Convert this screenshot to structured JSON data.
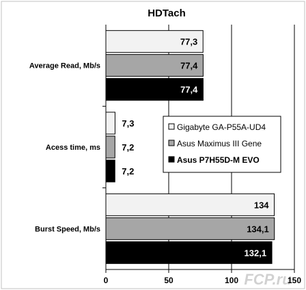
{
  "chart_data": {
    "type": "bar",
    "orientation": "horizontal",
    "title": "HDTach",
    "categories": [
      "Average Read, Mb/s",
      "Acess time, ms",
      "Burst Speed, Mb/s"
    ],
    "series": [
      {
        "name": "Gigabyte GA-P55A-UD4",
        "color": "#f2f2f2",
        "label_color": "#000000",
        "labels": [
          "77,3",
          "7,3",
          "134"
        ],
        "values": [
          77.3,
          7.3,
          134
        ]
      },
      {
        "name": "Asus Maximus III Gene",
        "color": "#a6a6a6",
        "label_color": "#000000",
        "labels": [
          "77,4",
          "7,2",
          "134,1"
        ],
        "values": [
          77.4,
          7.2,
          134.1
        ]
      },
      {
        "name": "Asus P7H55D-M EVO",
        "color": "#000000",
        "label_color": "#ffffff",
        "labels": [
          "77,4",
          "7,2",
          "132,1"
        ],
        "values": [
          77.4,
          7.2,
          132.1
        ]
      }
    ],
    "xlim": [
      0,
      150
    ],
    "xticks": [
      0,
      50,
      100,
      150
    ],
    "grid": true,
    "legend_position": "right",
    "background": "#ffffff",
    "frame_color": "#c0c0c0"
  },
  "watermark": "FCP.ru"
}
